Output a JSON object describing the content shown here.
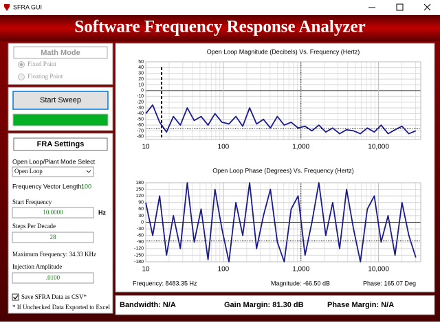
{
  "window": {
    "title": "SFRA GUI"
  },
  "banner": {
    "title": "Software Frequency Response Analyzer"
  },
  "math_mode": {
    "title": "Math Mode",
    "options": [
      "Fixed Point",
      "Floating Point"
    ]
  },
  "sweep": {
    "button": "Start Sweep"
  },
  "settings": {
    "title": "FRA Settings",
    "mode_label": "Open Loop/Plant Mode Select",
    "mode_value": "Open Loop",
    "vector_label": "Frequency Vector Length:",
    "vector_value": 100,
    "start_freq_label": "Start Frequency",
    "start_freq_value": "10.0000",
    "start_freq_unit": "Hz",
    "steps_label": "Steps Per Decade",
    "steps_value": 28,
    "max_freq": "Maximum Frequency: 34.33 KHz",
    "injection_label": "Injection Amplitude",
    "injection_value": ".0100",
    "save_csv": "Save SFRA Data as CSV*",
    "note": "* If Unchecked Data Exported to Excel"
  },
  "magnitude_chart": {
    "type": "line",
    "title": "Open Loop Magnitude (Decibels) Vs. Frequency (Hertz)",
    "color": "#1a1a8c",
    "x": [
      10,
      12.3,
      15.1,
      18.5,
      22.7,
      27.9,
      34.3,
      42.1,
      51.7,
      63.5,
      78,
      95.8,
      118,
      145,
      178,
      218,
      268,
      329,
      404,
      496,
      609,
      748,
      919,
      1129,
      1386,
      1702,
      2090,
      2567,
      3153,
      3872,
      4755,
      5840,
      7172,
      8808,
      10817,
      13285,
      16315,
      20036,
      24606,
      30219
    ],
    "values": [
      -40,
      -25,
      -55,
      -72,
      -45,
      -60,
      -30,
      -52,
      -45,
      -60,
      -40,
      -55,
      -58,
      -45,
      -62,
      -30,
      -58,
      -50,
      -65,
      -45,
      -60,
      -55,
      -65,
      -62,
      -70,
      -60,
      -72,
      -65,
      -75,
      -68,
      -70,
      -75,
      -65,
      -72,
      -60,
      -75,
      -68,
      -62,
      -75,
      -70
    ],
    "xlim": [
      10,
      35000
    ],
    "ylim": [
      -85,
      50
    ],
    "xticks": [
      10,
      100,
      {
        "value": 1000,
        "label": "1,000"
      },
      {
        "value": 10000,
        "label": "10,000"
      }
    ],
    "yticks": [
      50,
      40,
      30,
      20,
      10,
      0,
      -10,
      -20,
      -30,
      -40,
      -50,
      -60,
      -70,
      -80
    ],
    "log_x": true,
    "grid": true,
    "marker_x": 16,
    "cursor": {
      "x": 1000,
      "y": -66.5
    }
  },
  "phase_chart": {
    "type": "line",
    "title": "Open Loop Phase (Degrees) Vs. Frequency (Hertz)",
    "color": "#1a1a8c",
    "x": [
      10,
      12.3,
      15.1,
      18.5,
      22.7,
      27.9,
      34.3,
      42.1,
      51.7,
      63.5,
      78,
      95.8,
      118,
      145,
      178,
      218,
      268,
      329,
      404,
      496,
      609,
      748,
      919,
      1129,
      1386,
      1702,
      2090,
      2567,
      3153,
      3872,
      4755,
      5840,
      7172,
      8808,
      10817,
      13285,
      16315,
      20036,
      24606,
      30219
    ],
    "values": [
      90,
      -60,
      120,
      -150,
      30,
      -120,
      180,
      -90,
      60,
      -170,
      150,
      -30,
      -180,
      90,
      -60,
      180,
      -120,
      30,
      150,
      -90,
      -180,
      60,
      120,
      -150,
      0,
      180,
      -60,
      90,
      -120,
      150,
      -30,
      -180,
      60,
      120,
      -90,
      30,
      -150,
      90,
      -60,
      -160
    ],
    "xlim": [
      10,
      35000
    ],
    "ylim": [
      -180,
      180
    ],
    "xticks": [
      10,
      100,
      {
        "value": 1000,
        "label": "1,000"
      },
      {
        "value": 10000,
        "label": "10,000"
      }
    ],
    "yticks": [
      180,
      150,
      120,
      90,
      60,
      30,
      0,
      -30,
      -60,
      -90,
      -120,
      -150,
      -180
    ],
    "log_x": true,
    "grid": true,
    "cursor": {
      "x": 1000,
      "y": -85
    }
  },
  "readout": {
    "frequency": "Frequency: 8483.35 Hz",
    "magnitude": "Magnitude: -66.50 dB",
    "phase": "Phase: 165.07 Deg"
  },
  "status": {
    "bandwidth": "Bandwidth: N/A",
    "gain_margin": "Gain Margin: 81.30 dB",
    "phase_margin": "Phase Margin: N/A"
  }
}
